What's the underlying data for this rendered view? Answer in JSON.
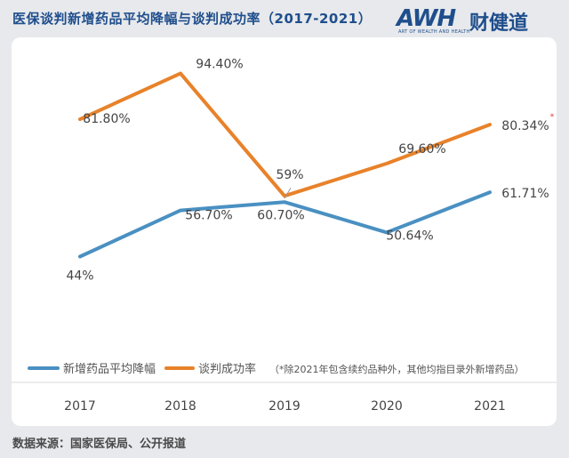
{
  "header": {
    "title": "医保谈判新增药品平均降幅与谈判成功率（2017-2021）"
  },
  "logo": {
    "mark": "AWH",
    "mark_cn": "财健道",
    "tagline": "ART OF WEALTH AND HEALTH"
  },
  "chart_data": {
    "type": "line",
    "categories": [
      "2017",
      "2018",
      "2019",
      "2020",
      "2021"
    ],
    "series": [
      {
        "name": "新增药品平均降幅",
        "values": [
          44,
          56.7,
          59,
          50.64,
          61.71
        ],
        "labels": [
          "44%",
          "56.70%",
          "59%",
          "50.64%",
          "61.71%"
        ],
        "color": "#4a90c2"
      },
      {
        "name": "谈判成功率",
        "values": [
          81.8,
          94.4,
          60.7,
          69.6,
          80.34
        ],
        "labels": [
          "81.80%",
          "94.40%",
          "60.70%",
          "69.60%",
          "80.34%"
        ],
        "color": "#e8822a"
      }
    ],
    "legend_note": "（*除2021年包含续约品种外，其他均指目录外新增药品）",
    "note_marker": "*",
    "legend_position": "bottom",
    "grid": false
  },
  "footer": {
    "source": "数据来源：国家医保局、公开报道"
  }
}
